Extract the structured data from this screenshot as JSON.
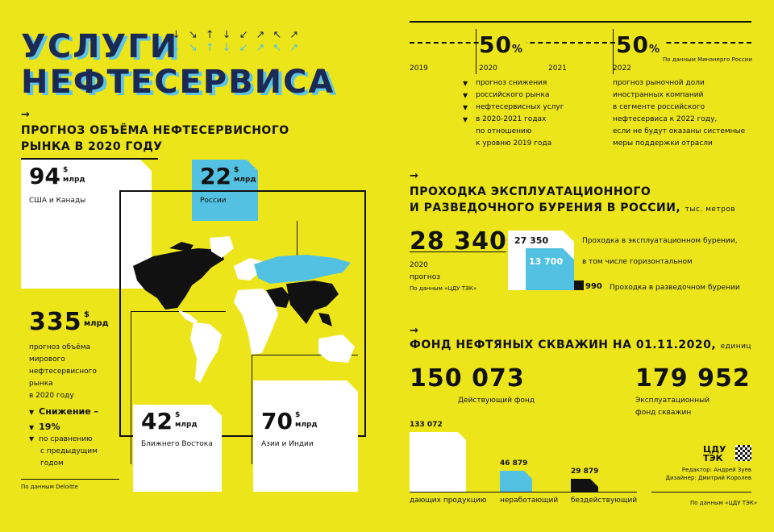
{
  "header": {
    "title_line1": "УСЛУГИ",
    "title_line2": "НЕФТЕСЕРВИСА",
    "arrows": "↓↘↑↓↙↗↖↗"
  },
  "market": {
    "heading": "ПРОГНОЗ ОБЪЁМА НЕФТЕСЕРВИСНОГО РЫНКА В 2020 ГОДУ",
    "regions": [
      {
        "value": "94",
        "unit_top": "$",
        "unit_bottom": "млрд",
        "label": "США и Канады"
      },
      {
        "value": "22",
        "unit_top": "$",
        "unit_bottom": "млрд",
        "label": "России"
      },
      {
        "value": "42",
        "unit_top": "$",
        "unit_bottom": "млрд",
        "label": "Ближнего Востока"
      },
      {
        "value": "70",
        "unit_top": "$",
        "unit_bottom": "млрд",
        "label": "Азии и Индии"
      }
    ],
    "world": {
      "value": "335",
      "unit_top": "$",
      "unit_bottom": "млрд",
      "text": [
        "прогноз объёма",
        "мирового",
        "нефтесервисного",
        "рынка",
        "в 2020 году"
      ]
    },
    "decline": {
      "label": "Снижение –",
      "value": "19%",
      "text": [
        "по сравнению",
        "с предыдущим",
        "годом"
      ]
    },
    "source": "По данным Deloitte"
  },
  "forecast": {
    "years": [
      "2019",
      "2020",
      "2021",
      "2022"
    ],
    "pct1": "50",
    "pct2": "50",
    "pct_sign": "%",
    "source": "По данным Минэнерго России",
    "text1": [
      "прогноз снижения",
      "российского рынка",
      "нефтесервисных услуг",
      "в 2020-2021 годах",
      "по отношению",
      "к уровню 2019 года"
    ],
    "text2": [
      "прогноз рыночной доли",
      "иностранных компаний",
      "в сегменте российского",
      "нефтесервиса к 2022 году,",
      "если не будут оказаны системные",
      "меры поддержки отрасли"
    ]
  },
  "drilling": {
    "heading_line1": "ПРОХОДКА ЭКСПЛУАТАЦИОННОГО",
    "heading_line2": "И РАЗВЕДОЧНОГО БУРЕНИЯ В РОССИИ,",
    "unit": "тыс. метров",
    "total": "28 340",
    "total_label1": "2020",
    "total_label2": "прогноз",
    "source": "По данным «ЦДУ ТЭК»",
    "exploitation": "27 350",
    "horizontal": "13 700",
    "exploration": "990",
    "exploitation_label": "Проходка в эксплуатационном бурении,",
    "horizontal_label": "в том числе горизонтальном",
    "exploration_label": "Проходка в разведочном бурении"
  },
  "wells": {
    "heading": "ФОНД НЕФТЯНЫХ СКВАЖИН НА 01.11.2020,",
    "unit": "единиц",
    "active": "150 073",
    "active_label": "Действующий фонд",
    "operational": "179 952",
    "operational_label1": "Эксплуатационный",
    "operational_label2": "фонд скважин",
    "bars": [
      {
        "value": "133 072",
        "label": "дающих продукцию",
        "fraction": 1.0,
        "color": "#ffffff"
      },
      {
        "value": "46 879",
        "label": "неработающий",
        "fraction": 0.35,
        "color": "#53c2e2"
      },
      {
        "value": "29 879",
        "label": "бездействующий",
        "fraction": 0.22,
        "color": "#111111"
      }
    ],
    "source": "По данным «ЦДУ ТЭК»"
  },
  "credits": {
    "logo1": "ЦДУ",
    "logo2": "ТЭК",
    "editor": "Редактор: Андрей Зуев",
    "designer": "Дизайнер: Дмитрий Королев"
  },
  "colors": {
    "background": "#ece51a",
    "blue": "#53c2e2",
    "navy": "#1b2a55"
  }
}
